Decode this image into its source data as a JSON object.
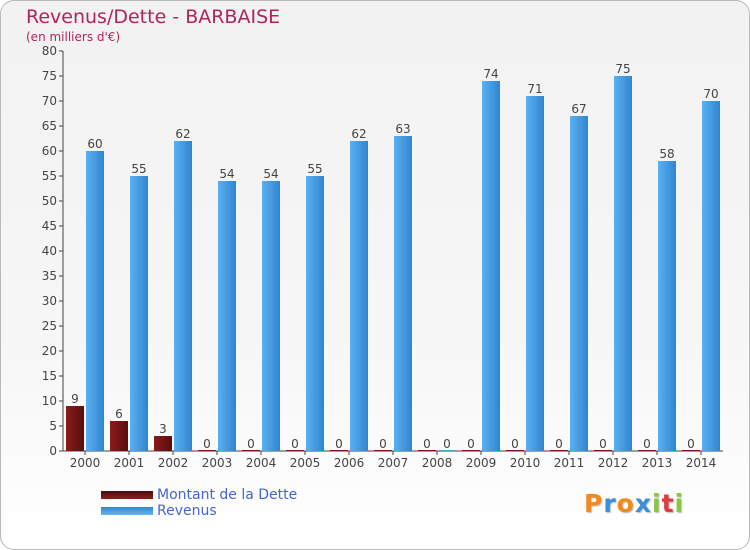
{
  "title": "Revenus/Dette - BARBAISE",
  "subtitle": "(en milliers d'€)",
  "colors": {
    "dette": "#7a1515",
    "revenus": "#4ea3e6",
    "title": "#b0245a",
    "legend_text": "#4466cc"
  },
  "legend": [
    {
      "label": "Montant de la Dette",
      "series": "dette"
    },
    {
      "label": "Revenus",
      "series": "revenus"
    }
  ],
  "logo": {
    "text": "Proxiti"
  },
  "chart_data": {
    "type": "bar",
    "categories": [
      "2000",
      "2001",
      "2002",
      "2003",
      "2004",
      "2005",
      "2006",
      "2007",
      "2008",
      "2009",
      "2010",
      "2011",
      "2012",
      "2013",
      "2014"
    ],
    "series": [
      {
        "name": "Montant de la Dette",
        "key": "dette",
        "values": [
          9,
          6,
          3,
          0,
          0,
          0,
          0,
          0,
          0,
          0,
          0,
          0,
          0,
          0,
          0
        ]
      },
      {
        "name": "Revenus",
        "key": "revenus",
        "values": [
          60,
          55,
          62,
          54,
          54,
          55,
          62,
          63,
          0,
          74,
          71,
          67,
          75,
          58,
          70
        ]
      }
    ],
    "ylim": [
      0,
      80
    ],
    "yticks": [
      0,
      5,
      10,
      15,
      20,
      25,
      30,
      35,
      40,
      45,
      50,
      55,
      60,
      65,
      70,
      75,
      80
    ],
    "grid": false,
    "legend_position": "bottom-left"
  }
}
